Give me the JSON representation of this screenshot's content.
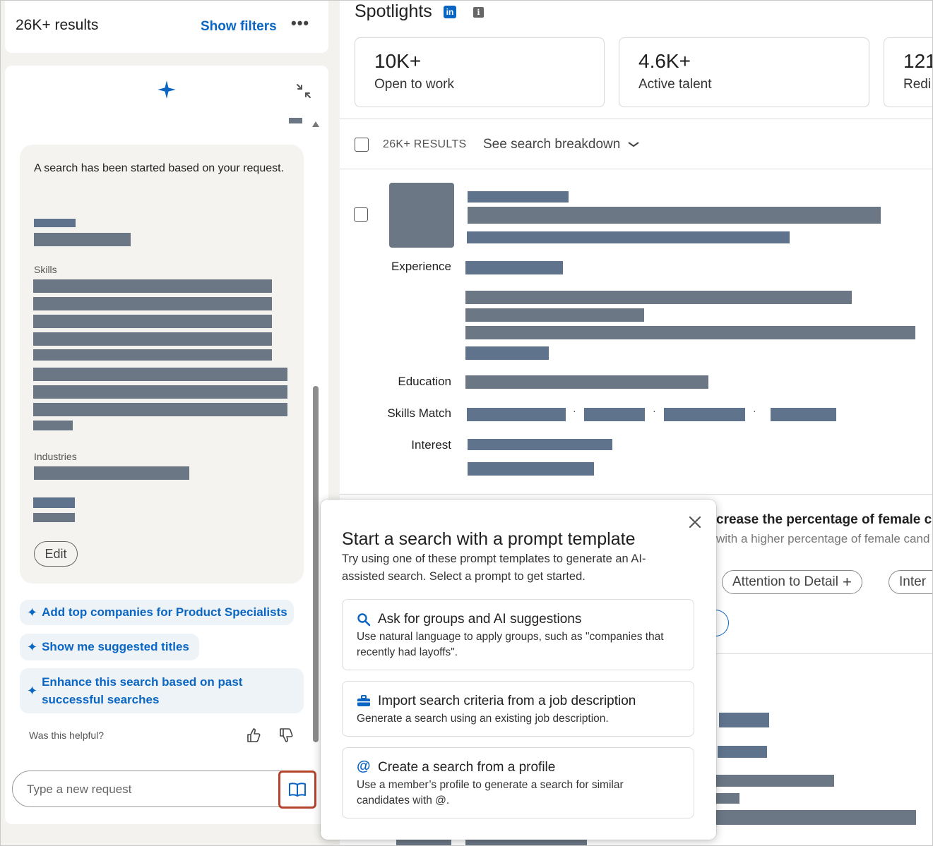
{
  "header": {
    "results_count": "26K+ results",
    "show_filters": "Show filters",
    "more": "•••"
  },
  "assistant": {
    "message": "A search has been started based on your request.",
    "skills_label": "Skills",
    "industries_label": "Industries",
    "edit_label": "Edit",
    "suggestions": [
      {
        "label": "Add top companies for Product Specialists"
      },
      {
        "label": "Show me suggested titles"
      },
      {
        "label": "Enhance this search based on past successful searches"
      }
    ],
    "helpful_prompt": "Was this helpful?",
    "input_placeholder": "Type a new request"
  },
  "spotlights": {
    "title": "Spotlights",
    "linkedin_badge": "in",
    "info_badge": "i",
    "cards": [
      {
        "value": "10K+",
        "label": "Open to work"
      },
      {
        "value": "4.6K+",
        "label": "Active talent"
      },
      {
        "value": "121",
        "label": "Redi"
      }
    ]
  },
  "results_bar": {
    "count": "26K+ RESULTS",
    "breakdown": "See search breakdown"
  },
  "candidate": {
    "labels": {
      "experience": "Experience",
      "education": "Education",
      "skills_match": "Skills Match",
      "interest": "Interest"
    }
  },
  "background_insight": {
    "title": "crease the percentage of female c",
    "subtitle": "with a higher percentage of female cand",
    "pills": [
      {
        "label": "Attention to Detail"
      },
      {
        "label": "Inter"
      }
    ]
  },
  "prompt_popover": {
    "title": "Start a search with a prompt template",
    "description": "Try using one of these prompt templates to generate an AI-assisted search. Select a prompt to get started.",
    "templates": [
      {
        "icon": "search-icon",
        "title": "Ask for groups and AI suggestions",
        "description": "Use natural language to apply groups, such as \"companies that recently had layoffs\"."
      },
      {
        "icon": "briefcase-icon",
        "title": "Import search criteria from a job description",
        "description": "Generate a search using an existing job description."
      },
      {
        "icon": "at-sign-icon",
        "title": "Create a search from a profile",
        "description": "Use a member’s profile to generate a search for similar candidates with @."
      }
    ]
  },
  "colors": {
    "accent": "#0a66c2",
    "highlight_border": "#b4432e",
    "redaction": "#6b7785"
  }
}
